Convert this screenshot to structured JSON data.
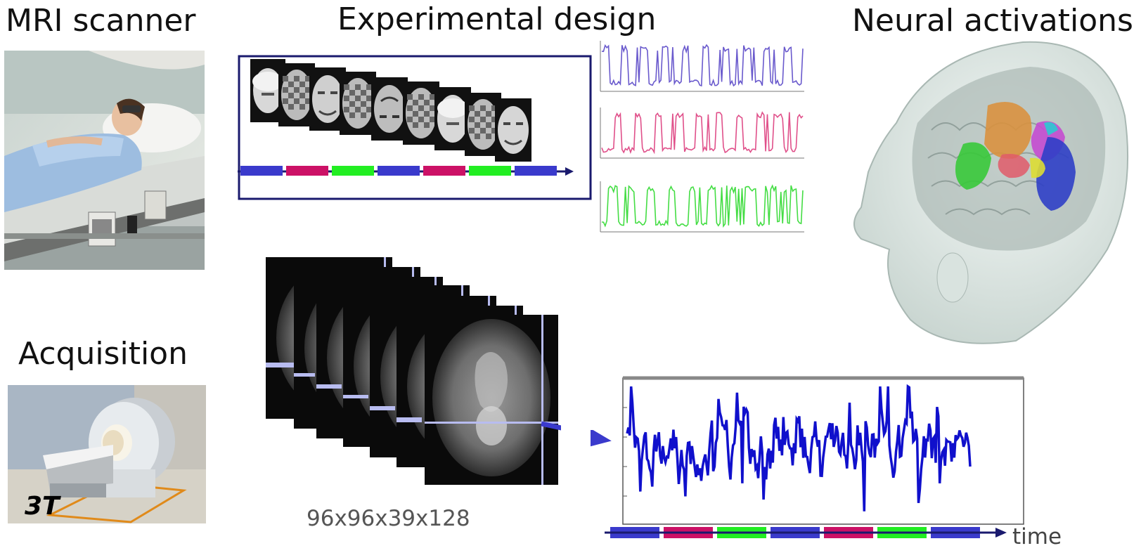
{
  "titles": {
    "mri_scanner": "MRI scanner",
    "experimental_design": "Experimental design",
    "neural_activations": "Neural activations",
    "acquisition": "Acquisition"
  },
  "acquisition_photo": {
    "field_strength": "3T"
  },
  "volume": {
    "dimensions": "96x96x39x128"
  },
  "timecourse": {
    "axis_label": "time"
  },
  "design": {
    "stimuli": [
      "face",
      "checkerboard",
      "face",
      "checkerboard",
      "face-inverted",
      "checkerboard",
      "face",
      "checkerboard",
      "face"
    ],
    "block_sequence": [
      "blue",
      "magenta",
      "green",
      "blue",
      "magenta",
      "green",
      "blue"
    ]
  },
  "colors": {
    "blue": "#3a3acc",
    "magenta": "#cc1166",
    "green": "#22ee22",
    "frame": "#1a1a6e",
    "signal": "#1010cc",
    "regressor_blue": "#6a5acd",
    "regressor_pink": "#e0508a",
    "regressor_green": "#44dd44"
  }
}
